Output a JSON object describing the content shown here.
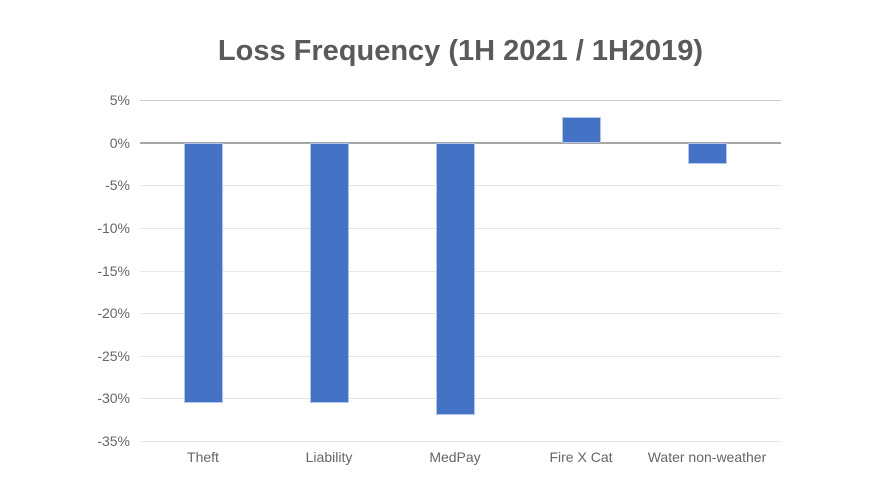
{
  "chart_data": {
    "type": "bar",
    "title": "Loss Frequency (1H 2021 / 1H2019)",
    "categories": [
      "Theft",
      "Liability",
      "MedPay",
      "Fire X Cat",
      "Water non-weather"
    ],
    "values": [
      -30.5,
      -30.5,
      -32,
      3,
      -2.5
    ],
    "xlabel": "",
    "ylabel": "",
    "ylim": [
      -35,
      5
    ],
    "yticks": [
      5,
      0,
      -5,
      -10,
      -15,
      -20,
      -25,
      -30,
      -35
    ],
    "ytick_labels": [
      "5%",
      "0%",
      "-5%",
      "-10%",
      "-15%",
      "-20%",
      "-25%",
      "-30%",
      "-35%"
    ],
    "grid": true,
    "legend": "none",
    "colors": {
      "background": "#ffffff",
      "bar": "#4472C4",
      "bar_edge": "#b3c5ee",
      "title": "#5a5a5a",
      "axis_labels": "#666666",
      "gridline": "#e6e6e6",
      "gridline_top": "#cccccc",
      "zero_line": "#a6a6a6"
    }
  }
}
